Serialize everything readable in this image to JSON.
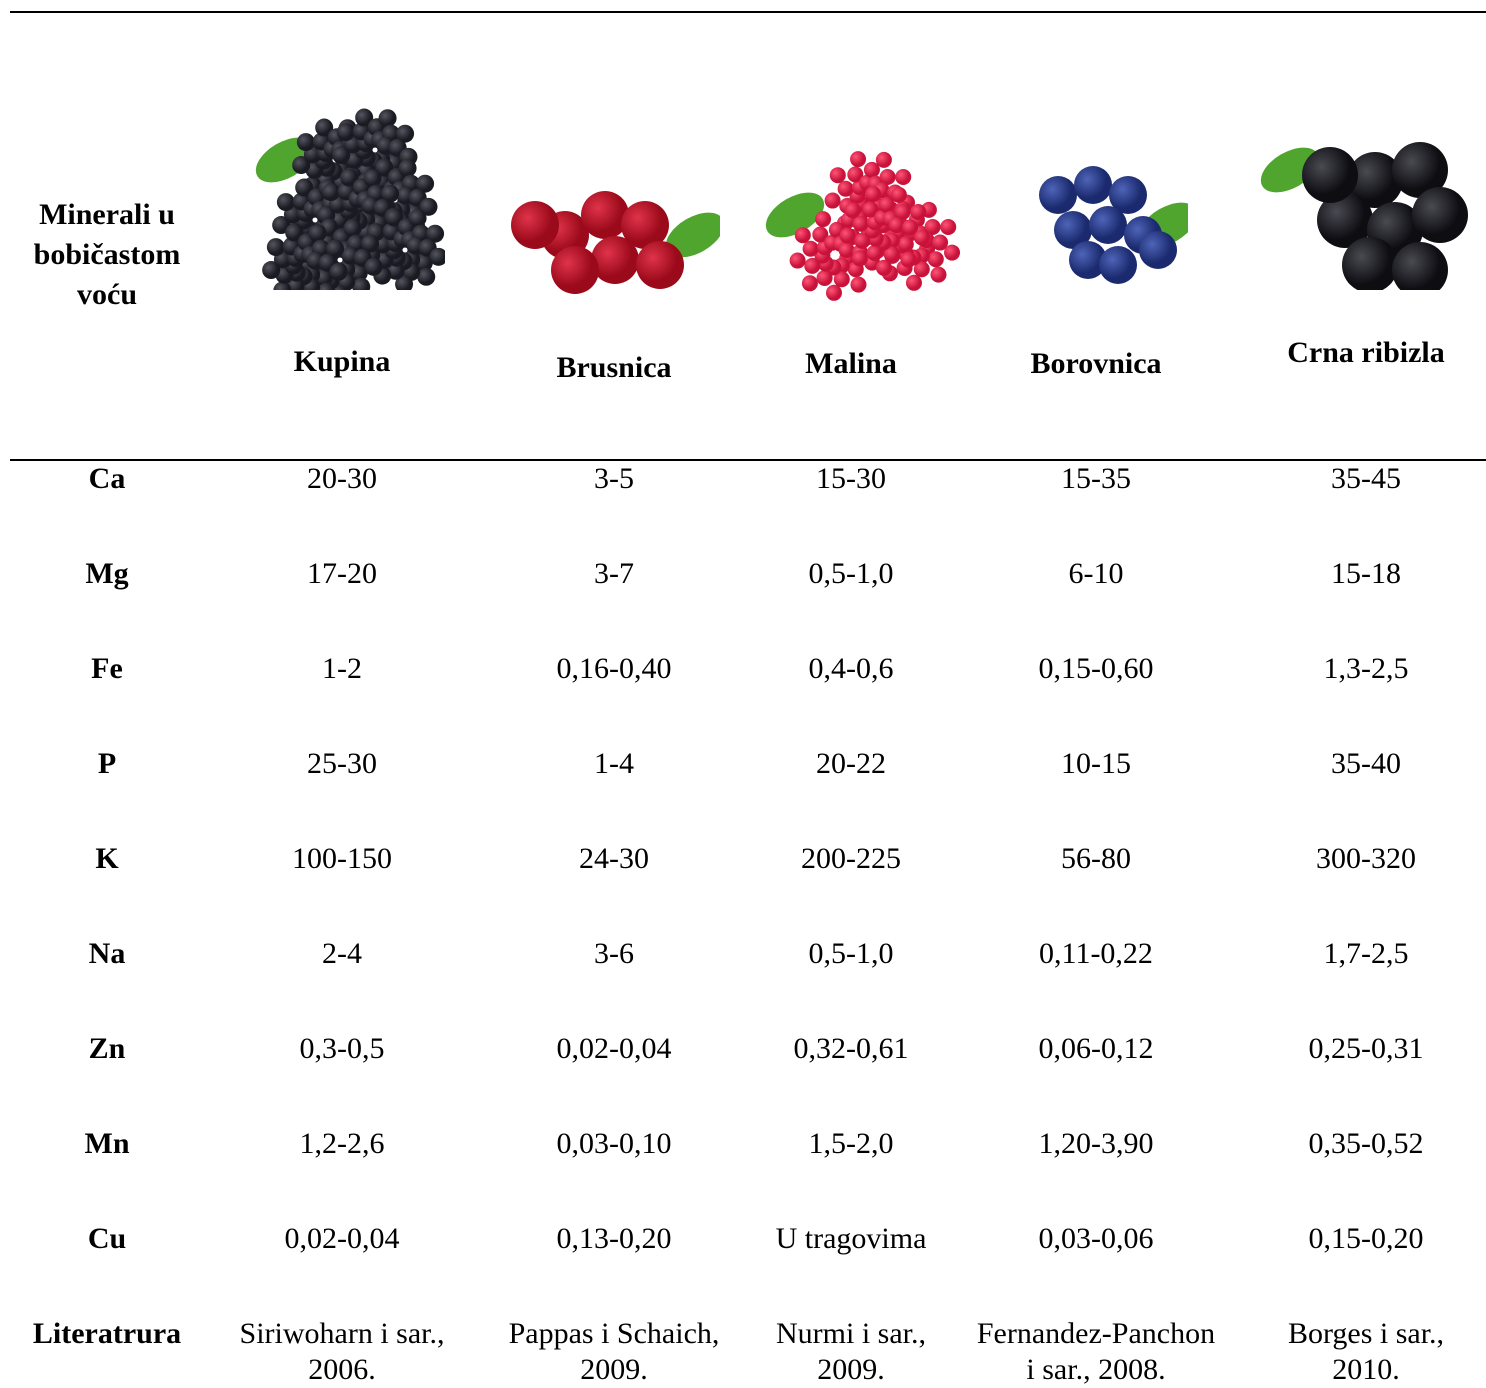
{
  "table": {
    "corner": [
      "Minerali u",
      "bobičastom",
      "voću"
    ],
    "columns": [
      "Kupina",
      "Brusnica",
      "Malina",
      "Borovnica",
      "Crna ribizla"
    ],
    "rows": [
      {
        "label": "Ca",
        "cells": [
          "20-30",
          "3-5",
          "15-30",
          "15-35",
          "35-45"
        ]
      },
      {
        "label": "Mg",
        "cells": [
          "17-20",
          "3-7",
          "0,5-1,0",
          "6-10",
          "15-18"
        ]
      },
      {
        "label": "Fe",
        "cells": [
          "1-2",
          "0,16-0,40",
          "0,4-0,6",
          "0,15-0,60",
          "1,3-2,5"
        ]
      },
      {
        "label": "P",
        "cells": [
          "25-30",
          "1-4",
          "20-22",
          "10-15",
          "35-40"
        ]
      },
      {
        "label": "K",
        "cells": [
          "100-150",
          "24-30",
          "200-225",
          "56-80",
          "300-320"
        ]
      },
      {
        "label": "Na",
        "cells": [
          "2-4",
          "3-6",
          "0,5-1,0",
          "0,11-0,22",
          "1,7-2,5"
        ]
      },
      {
        "label": "Zn",
        "cells": [
          "0,3-0,5",
          "0,02-0,04",
          "0,32-0,61",
          "0,06-0,12",
          "0,25-0,31"
        ]
      },
      {
        "label": "Mn",
        "cells": [
          "1,2-2,6",
          "0,03-0,10",
          "1,5-2,0",
          "1,20-3,90",
          "0,35-0,52"
        ]
      },
      {
        "label": "Cu",
        "cells": [
          "0,02-0,04",
          "0,13-0,20",
          "U tragovima",
          "0,03-0,06",
          "0,15-0,20"
        ]
      }
    ],
    "literature": {
      "label": "Literatrura",
      "cells": [
        [
          "Siriwoharn i sar.,",
          "2006."
        ],
        [
          "Pappas i Schaich,",
          "2009."
        ],
        [
          "Nurmi i sar.,",
          "2009."
        ],
        [
          "Fernandez-Panchon",
          "i sar., 2008."
        ],
        [
          "Borges i sar.,",
          "2010."
        ]
      ]
    }
  }
}
